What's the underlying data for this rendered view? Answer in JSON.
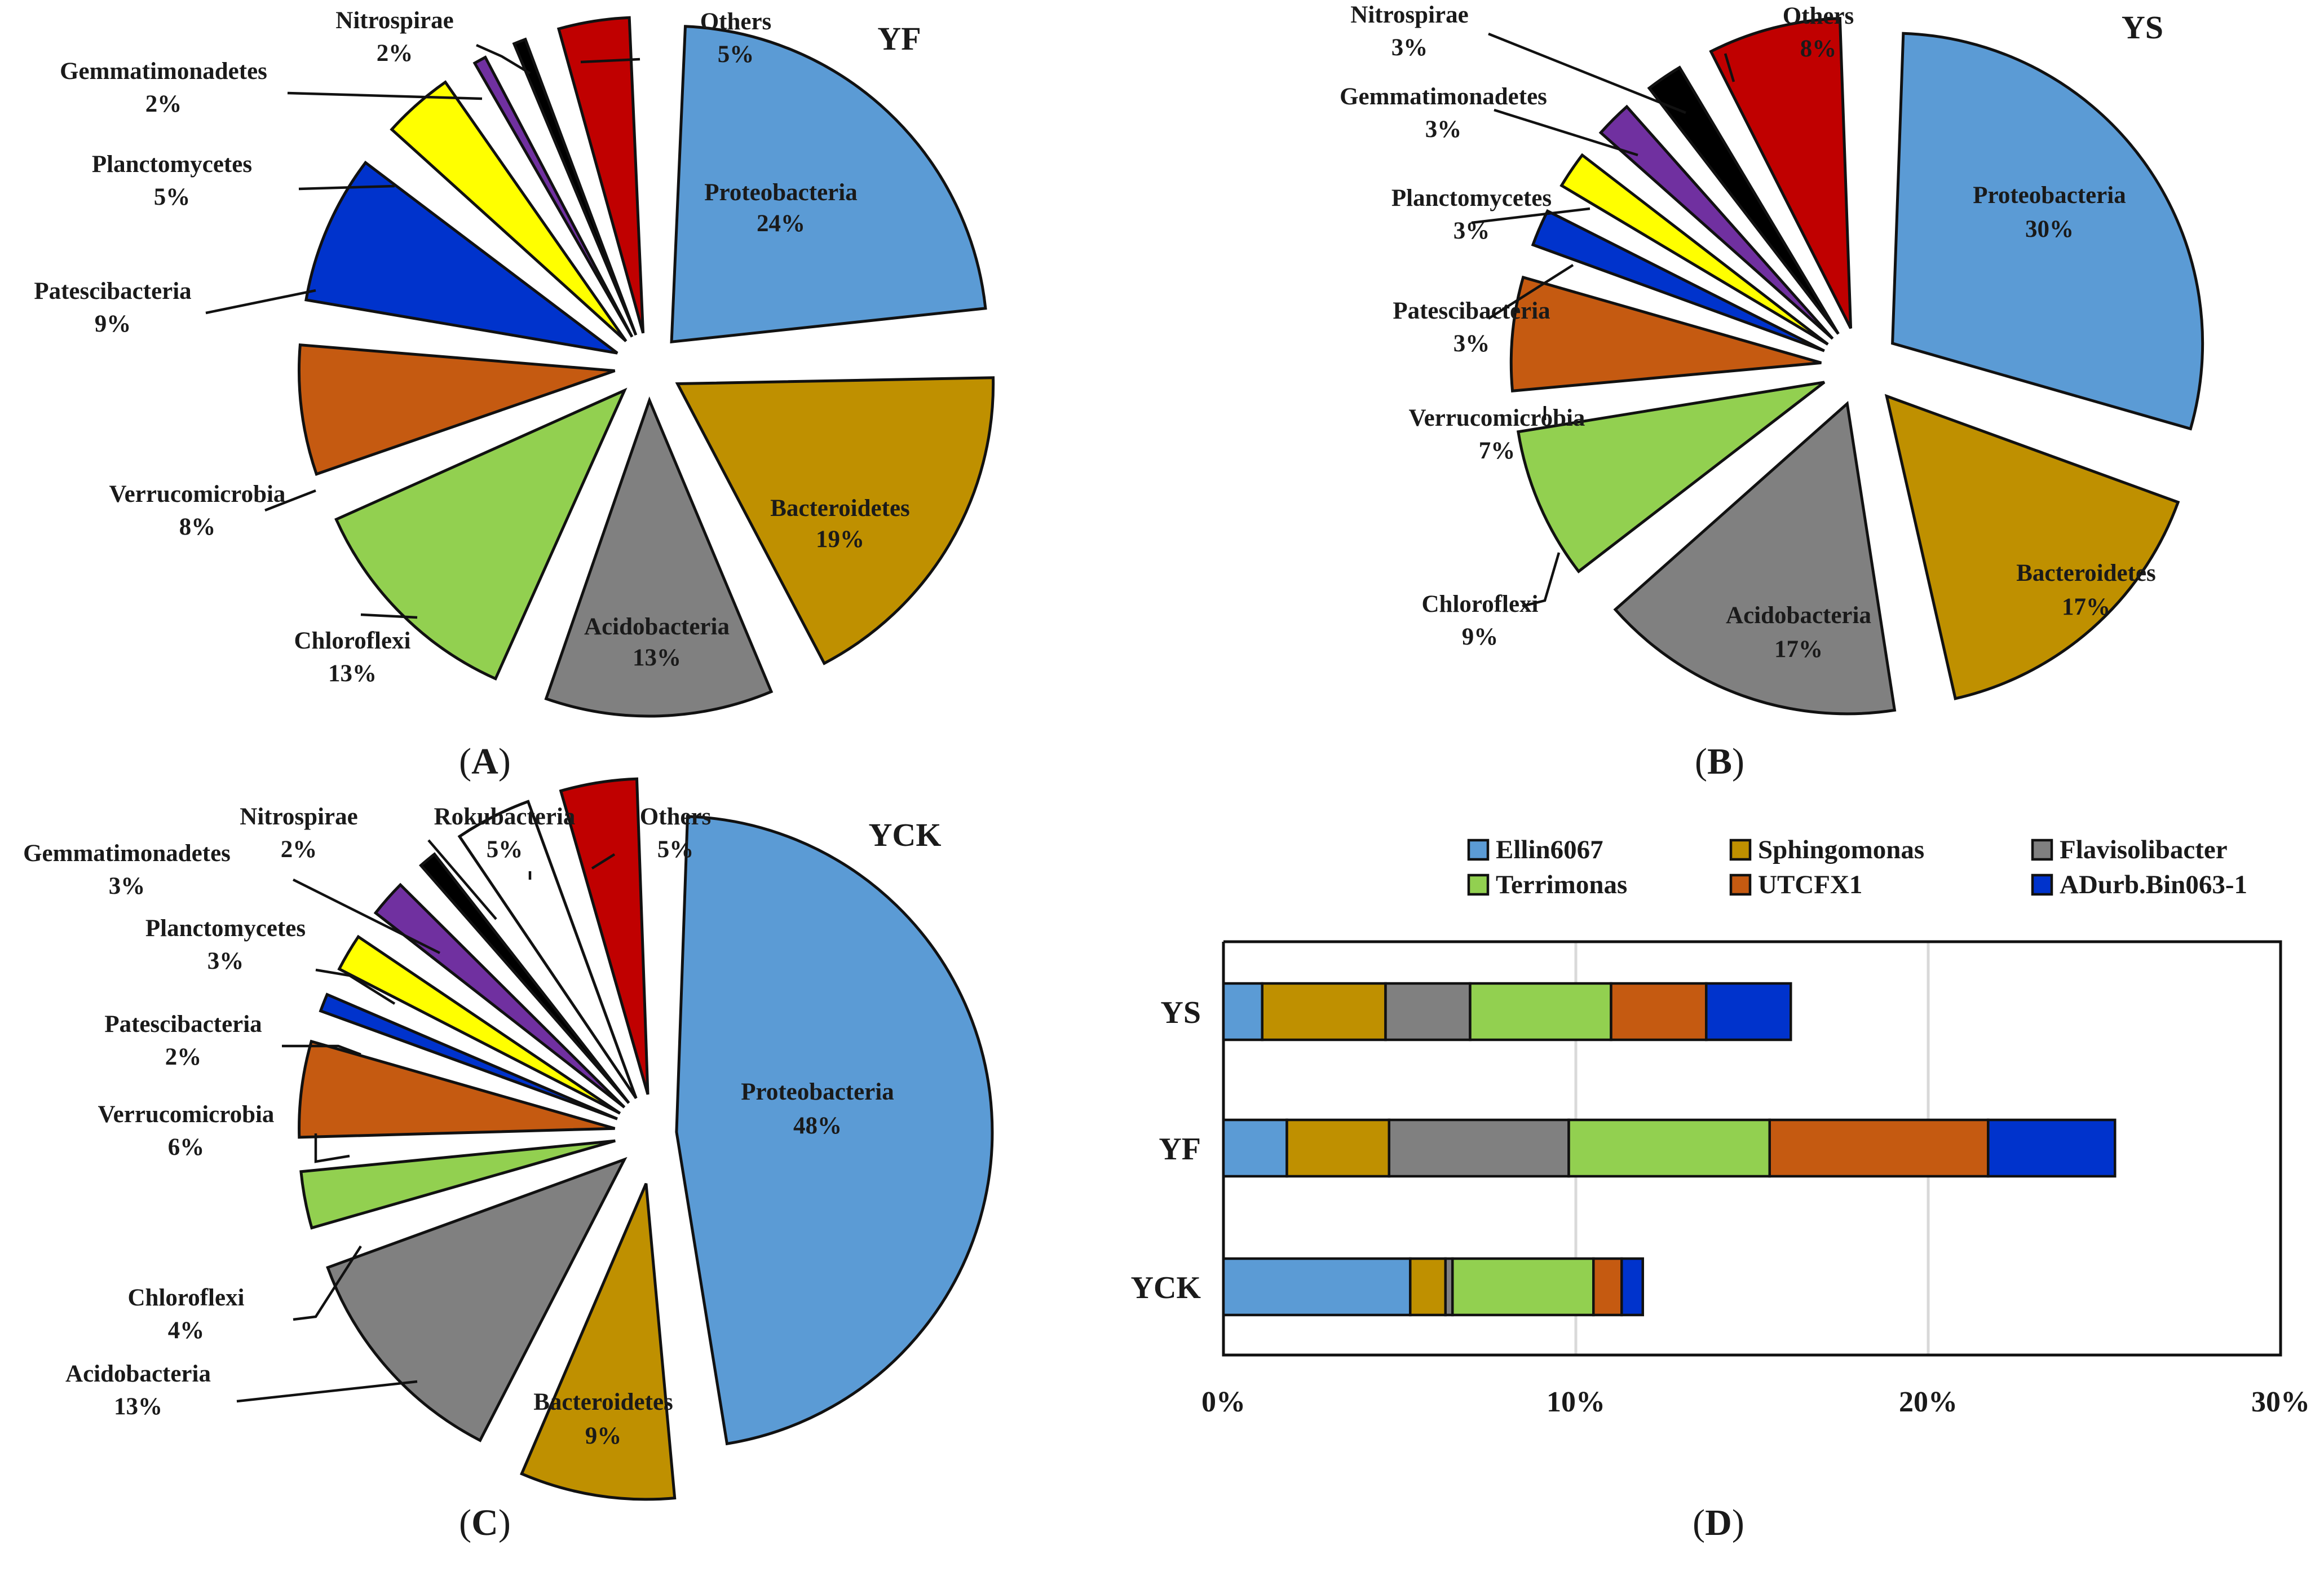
{
  "colors": {
    "Proteobacteria": "#5b9bd5",
    "Bacteroidetes": "#bf9000",
    "Acidobacteria": "#808080",
    "Chloroflexi": "#92d050",
    "Verrucomicrobia": "#c55a11",
    "Patescibacteria": "#0033cc",
    "Planctomycetes": "#ffff00",
    "Gemmatimonadetes": "#7030a0",
    "Nitrospirae": "#000000",
    "Rokubacteria": "#ffffff",
    "Others": "#c00000",
    "Ellin6067": "#5b9bd5",
    "Sphingomonas": "#bf9000",
    "Flavisolibacter": "#808080",
    "Terrimonas": "#92d050",
    "UTCFX1": "#c55a11",
    "ADurb.Bin063-1": "#0033cc"
  },
  "chart_data": [
    {
      "type": "pie",
      "panel": "(A)",
      "panel_letter": "A",
      "title": "YF",
      "slices": [
        {
          "name": "Proteobacteria",
          "label": "24%",
          "value": 24
        },
        {
          "name": "Bacteroidetes",
          "label": "19%",
          "value": 19
        },
        {
          "name": "Acidobacteria",
          "label": "13%",
          "value": 13
        },
        {
          "name": "Chloroflexi",
          "label": "13%",
          "value": 13
        },
        {
          "name": "Verrucomicrobia",
          "label": "8%",
          "value": 8
        },
        {
          "name": "Patescibacteria",
          "label": "9%",
          "value": 9
        },
        {
          "name": "Planctomycetes",
          "label": "5%",
          "value": 5
        },
        {
          "name": "Gemmatimonadetes",
          "label": "2%",
          "value": 2
        },
        {
          "name": "Nitrospirae",
          "label": "2%",
          "value": 2
        },
        {
          "name": "Others",
          "label": "5%",
          "value": 5
        }
      ]
    },
    {
      "type": "pie",
      "panel": "(B)",
      "panel_letter": "B",
      "title": "YS",
      "slices": [
        {
          "name": "Proteobacteria",
          "label": "30%",
          "value": 30
        },
        {
          "name": "Bacteroidetes",
          "label": "17%",
          "value": 17
        },
        {
          "name": "Acidobacteria",
          "label": "17%",
          "value": 17
        },
        {
          "name": "Chloroflexi",
          "label": "9%",
          "value": 9
        },
        {
          "name": "Verrucomicrobia",
          "label": "7%",
          "value": 7
        },
        {
          "name": "Patescibacteria",
          "label": "3%",
          "value": 3
        },
        {
          "name": "Planctomycetes",
          "label": "3%",
          "value": 3
        },
        {
          "name": "Gemmatimonadetes",
          "label": "3%",
          "value": 3
        },
        {
          "name": "Nitrospirae",
          "label": "3%",
          "value": 3
        },
        {
          "name": "Others",
          "label": "8%",
          "value": 8
        }
      ]
    },
    {
      "type": "pie",
      "panel": "(C)",
      "panel_letter": "C",
      "title": "YCK",
      "slices": [
        {
          "name": "Proteobacteria",
          "label": "48%",
          "value": 48
        },
        {
          "name": "Bacteroidetes",
          "label": "9%",
          "value": 9
        },
        {
          "name": "Acidobacteria",
          "label": "13%",
          "value": 13
        },
        {
          "name": "Chloroflexi",
          "label": "4%",
          "value": 4
        },
        {
          "name": "Verrucomicrobia",
          "label": "6%",
          "value": 6
        },
        {
          "name": "Patescibacteria",
          "label": "2%",
          "value": 2
        },
        {
          "name": "Planctomycetes",
          "label": "3%",
          "value": 3
        },
        {
          "name": "Gemmatimonadetes",
          "label": "3%",
          "value": 3
        },
        {
          "name": "Nitrospirae",
          "label": "2%",
          "value": 2
        },
        {
          "name": "Rokubacteria",
          "label": "5%",
          "value": 5
        },
        {
          "name": "Others",
          "label": "5%",
          "value": 5
        }
      ]
    },
    {
      "type": "bar",
      "orientation": "horizontal",
      "stacked": true,
      "panel": "(D)",
      "panel_letter": "D",
      "categories": [
        "YS",
        "YF",
        "YCK"
      ],
      "xlim": [
        0,
        30
      ],
      "xticks": [
        "0%",
        "10%",
        "20%",
        "30%"
      ],
      "grid": true,
      "legend_position": "top",
      "series": [
        {
          "name": "Ellin6067",
          "values": [
            1.1,
            1.8,
            5.3
          ]
        },
        {
          "name": "Sphingomonas",
          "values": [
            3.5,
            2.9,
            1.0
          ]
        },
        {
          "name": "Flavisolibacter",
          "values": [
            2.4,
            5.1,
            0.2
          ]
        },
        {
          "name": "Terrimonas",
          "values": [
            4.0,
            5.7,
            4.0
          ]
        },
        {
          "name": "UTCFX1",
          "values": [
            2.7,
            6.2,
            0.8
          ]
        },
        {
          "name": "ADurb.Bin063-1",
          "values": [
            2.4,
            3.6,
            0.6
          ]
        }
      ]
    }
  ]
}
